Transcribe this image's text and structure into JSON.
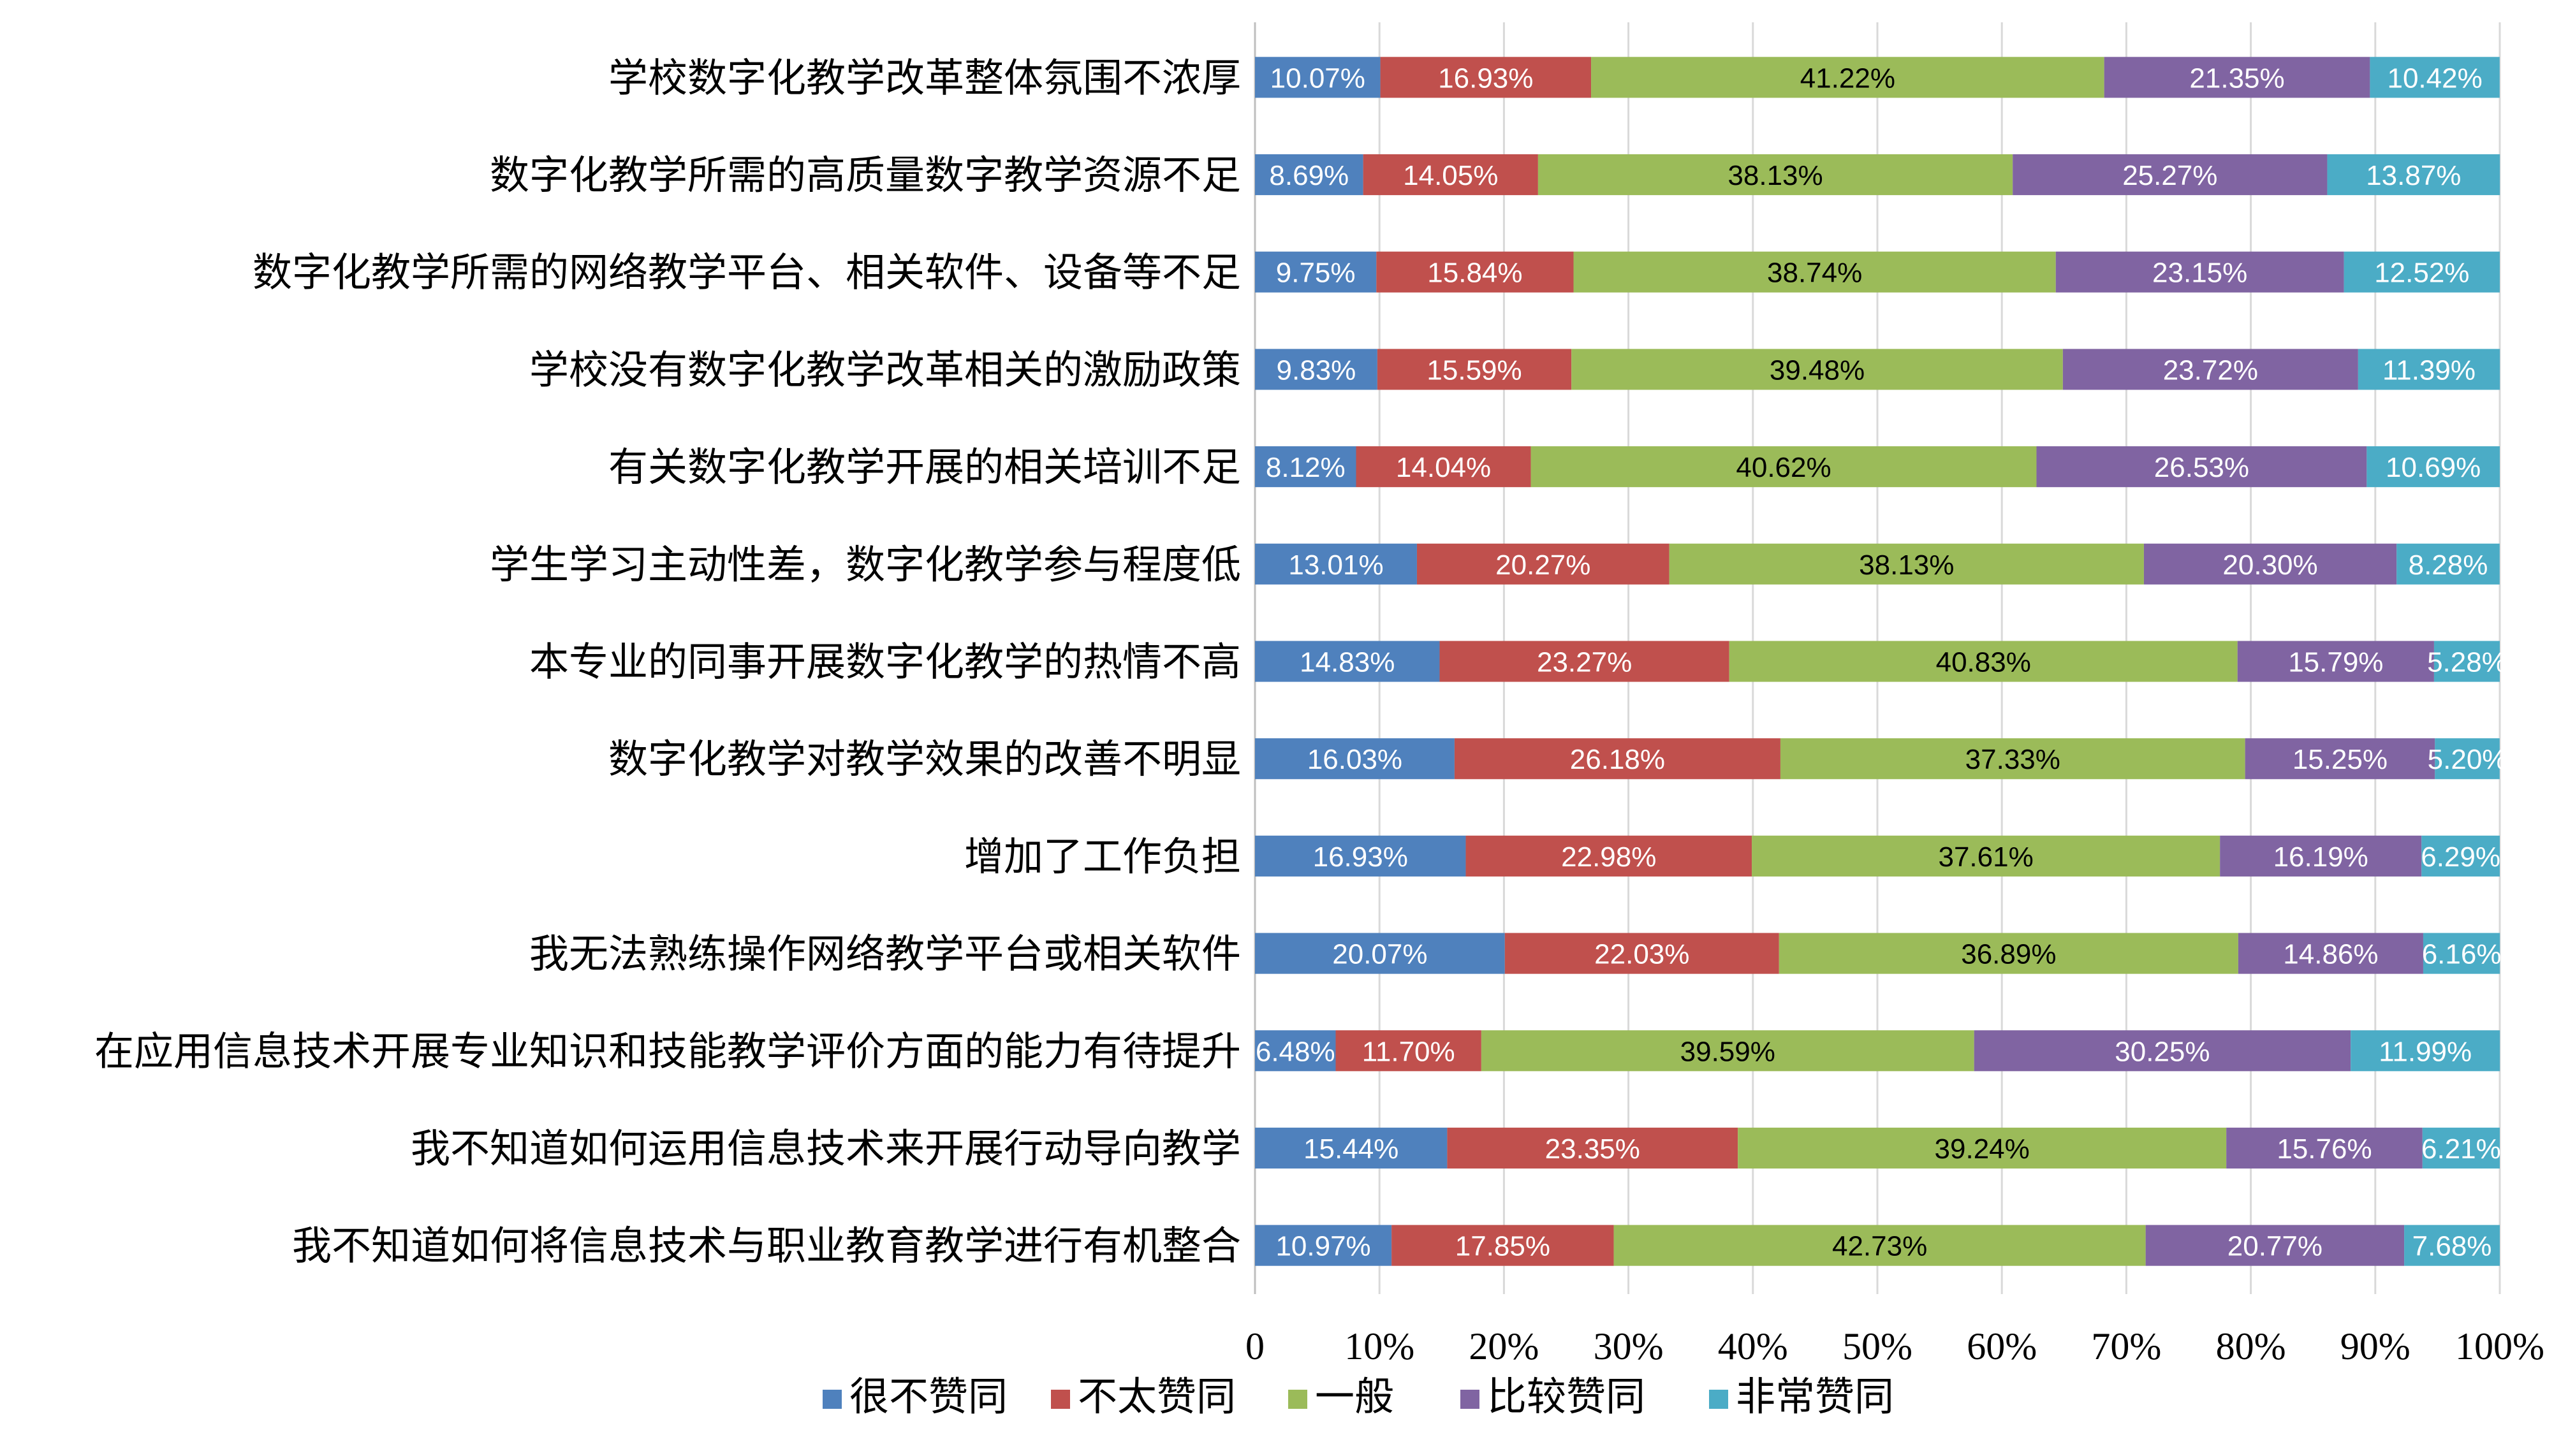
{
  "chart_data": {
    "type": "bar",
    "orientation": "horizontal",
    "stacked": true,
    "percent_stacked": true,
    "categories": [
      "学校数字化教学改革整体氛围不浓厚",
      "数字化教学所需的高质量数字教学资源不足",
      "数字化教学所需的网络教学平台、相关软件、设备等不足",
      "学校没有数字化教学改革相关的激励政策",
      "有关数字化教学开展的相关培训不足",
      "学生学习主动性差，数字化教学参与程度低",
      "本专业的同事开展数字化教学的热情不高",
      "数字化教学对教学效果的改善不明显",
      "增加了工作负担",
      "我无法熟练操作网络教学平台或相关软件",
      "在应用信息技术开展专业知识和技能教学评价方面的能力有待提升",
      "我不知道如何运用信息技术来开展行动导向教学",
      "我不知道如何将信息技术与职业教育教学进行有机整合"
    ],
    "series": [
      {
        "name": "很不赞同",
        "color": "#4f81bd",
        "values": [
          10.07,
          8.69,
          9.75,
          9.83,
          8.12,
          13.01,
          14.83,
          16.03,
          16.93,
          20.07,
          6.48,
          15.44,
          10.97
        ],
        "labels": [
          "10.07%",
          "8.69%",
          "9.75%",
          "9.83%",
          "8.12%",
          "13.01%",
          "14.83%",
          "16.03%",
          "16.93%",
          "20.07%",
          "6.48%",
          "15.44%",
          "10.97%"
        ]
      },
      {
        "name": "不太赞同",
        "color": "#c0504d",
        "values": [
          16.93,
          14.05,
          15.84,
          15.59,
          14.04,
          20.27,
          23.27,
          26.18,
          22.98,
          22.03,
          11.7,
          23.35,
          17.85
        ],
        "labels": [
          "16.93%",
          "14.05%",
          "15.84%",
          "15.59%",
          "14.04%",
          "20.27%",
          "23.27%",
          "26.18%",
          "22.98%",
          "22.03%",
          "11.70%",
          "23.35%",
          "17.85%"
        ]
      },
      {
        "name": "一般",
        "color": "#9bbb59",
        "values": [
          41.22,
          38.13,
          38.74,
          39.48,
          40.62,
          38.13,
          40.83,
          37.33,
          37.61,
          36.89,
          39.59,
          39.24,
          42.73
        ],
        "labels": [
          "41.22%",
          "38.13%",
          "38.74%",
          "39.48%",
          "40.62%",
          "38.13%",
          "40.83%",
          "37.33%",
          "37.61%",
          "36.89%",
          "39.59%",
          "39.24%",
          "42.73%"
        ]
      },
      {
        "name": "比较赞同",
        "color": "#8064a2",
        "values": [
          21.35,
          25.27,
          23.15,
          23.72,
          26.53,
          20.3,
          15.79,
          15.25,
          16.19,
          14.86,
          30.25,
          15.76,
          20.77
        ],
        "labels": [
          "21.35%",
          "25.27%",
          "23.15%",
          "23.72%",
          "26.53%",
          "20.30%",
          "15.79%",
          "15.25%",
          "16.19%",
          "14.86%",
          "30.25%",
          "15.76%",
          "20.77%"
        ]
      },
      {
        "name": "非常赞同",
        "color": "#4bacc6",
        "values": [
          10.42,
          13.87,
          12.52,
          11.39,
          10.69,
          8.28,
          5.28,
          5.2,
          6.29,
          6.16,
          11.99,
          6.21,
          7.68
        ],
        "labels": [
          "10.42%",
          "13.87%",
          "12.52%",
          "11.39%",
          "10.69%",
          "8.28%",
          "5.28%",
          "5.20%",
          "6.29%",
          "6.16%",
          "11.99%",
          "6.21%",
          "7.68%"
        ]
      }
    ],
    "x_ticks": [
      "0",
      "10%",
      "20%",
      "30%",
      "40%",
      "50%",
      "60%",
      "70%",
      "80%",
      "90%",
      "100%"
    ],
    "xlim": [
      0,
      100
    ],
    "grid": "vertical",
    "legend_position": "bottom",
    "title": "",
    "xlabel": "",
    "ylabel": "",
    "label_colors": {
      "dark": "#000000",
      "light": "#ffffff"
    },
    "gridline_color": "#d9d9d9"
  }
}
